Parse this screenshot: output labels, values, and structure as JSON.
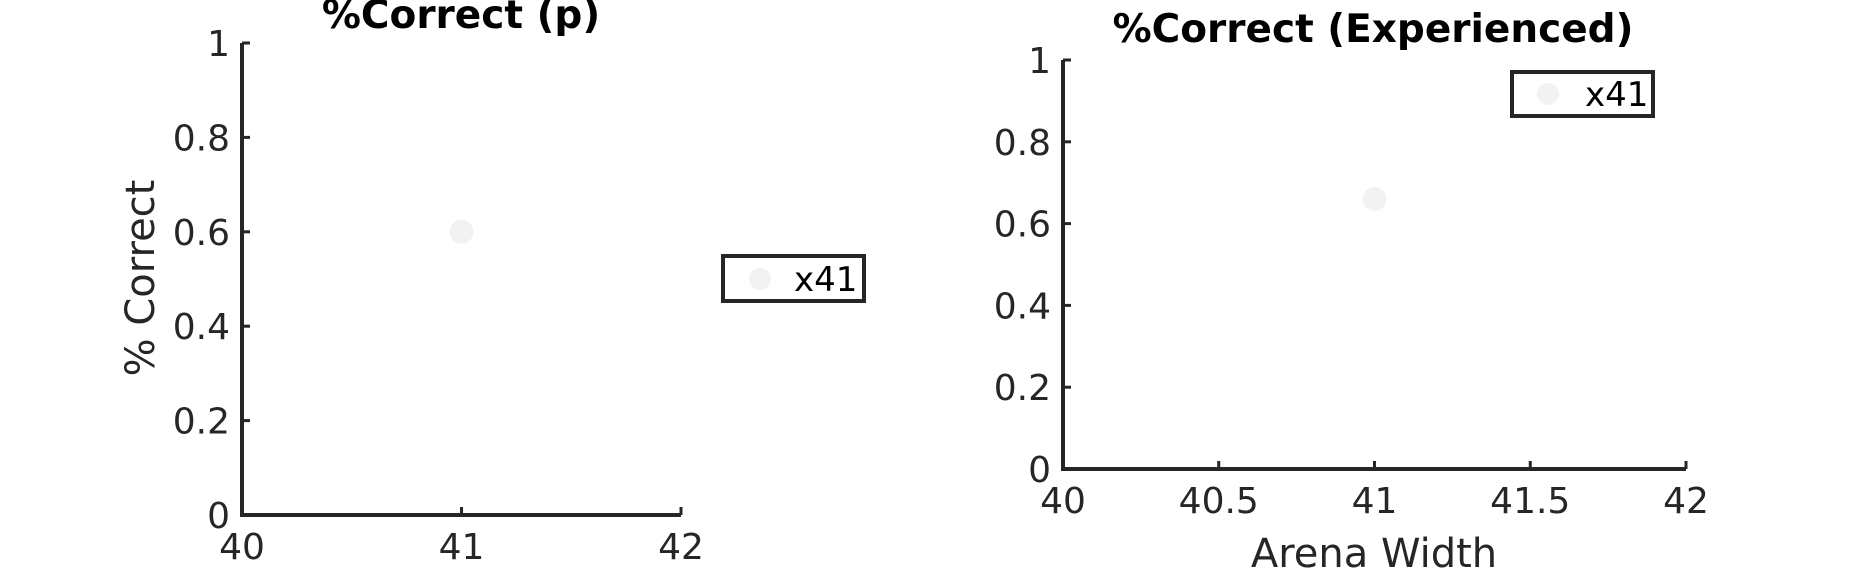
{
  "chart_data": [
    {
      "type": "scatter",
      "title": "%Correct (p)",
      "xlabel": "",
      "ylabel": "% Correct",
      "xlim": [
        40,
        42
      ],
      "ylim": [
        0,
        1
      ],
      "xticks": [
        "40",
        "41",
        "42"
      ],
      "yticks": [
        "0",
        "0.2",
        "0.4",
        "0.6",
        "0.8",
        "1"
      ],
      "grid": false,
      "legend_placement": "outside-right",
      "series": [
        {
          "name": "x41",
          "color": "#f2f2f2",
          "points": [
            {
              "x": 41,
              "y": 0.6
            }
          ]
        }
      ]
    },
    {
      "type": "scatter",
      "title": "%Correct (Experienced)",
      "xlabel": "Arena Width",
      "ylabel": "",
      "xlim": [
        40,
        42
      ],
      "ylim": [
        0,
        1
      ],
      "xticks": [
        "40",
        "40.5",
        "41",
        "41.5",
        "42"
      ],
      "yticks": [
        "0",
        "0.2",
        "0.4",
        "0.6",
        "0.8",
        "1"
      ],
      "grid": false,
      "legend_placement": "top-right",
      "series": [
        {
          "name": "x41",
          "color": "#f2f2f2",
          "points": [
            {
              "x": 41,
              "y": 0.66
            }
          ]
        }
      ]
    }
  ]
}
